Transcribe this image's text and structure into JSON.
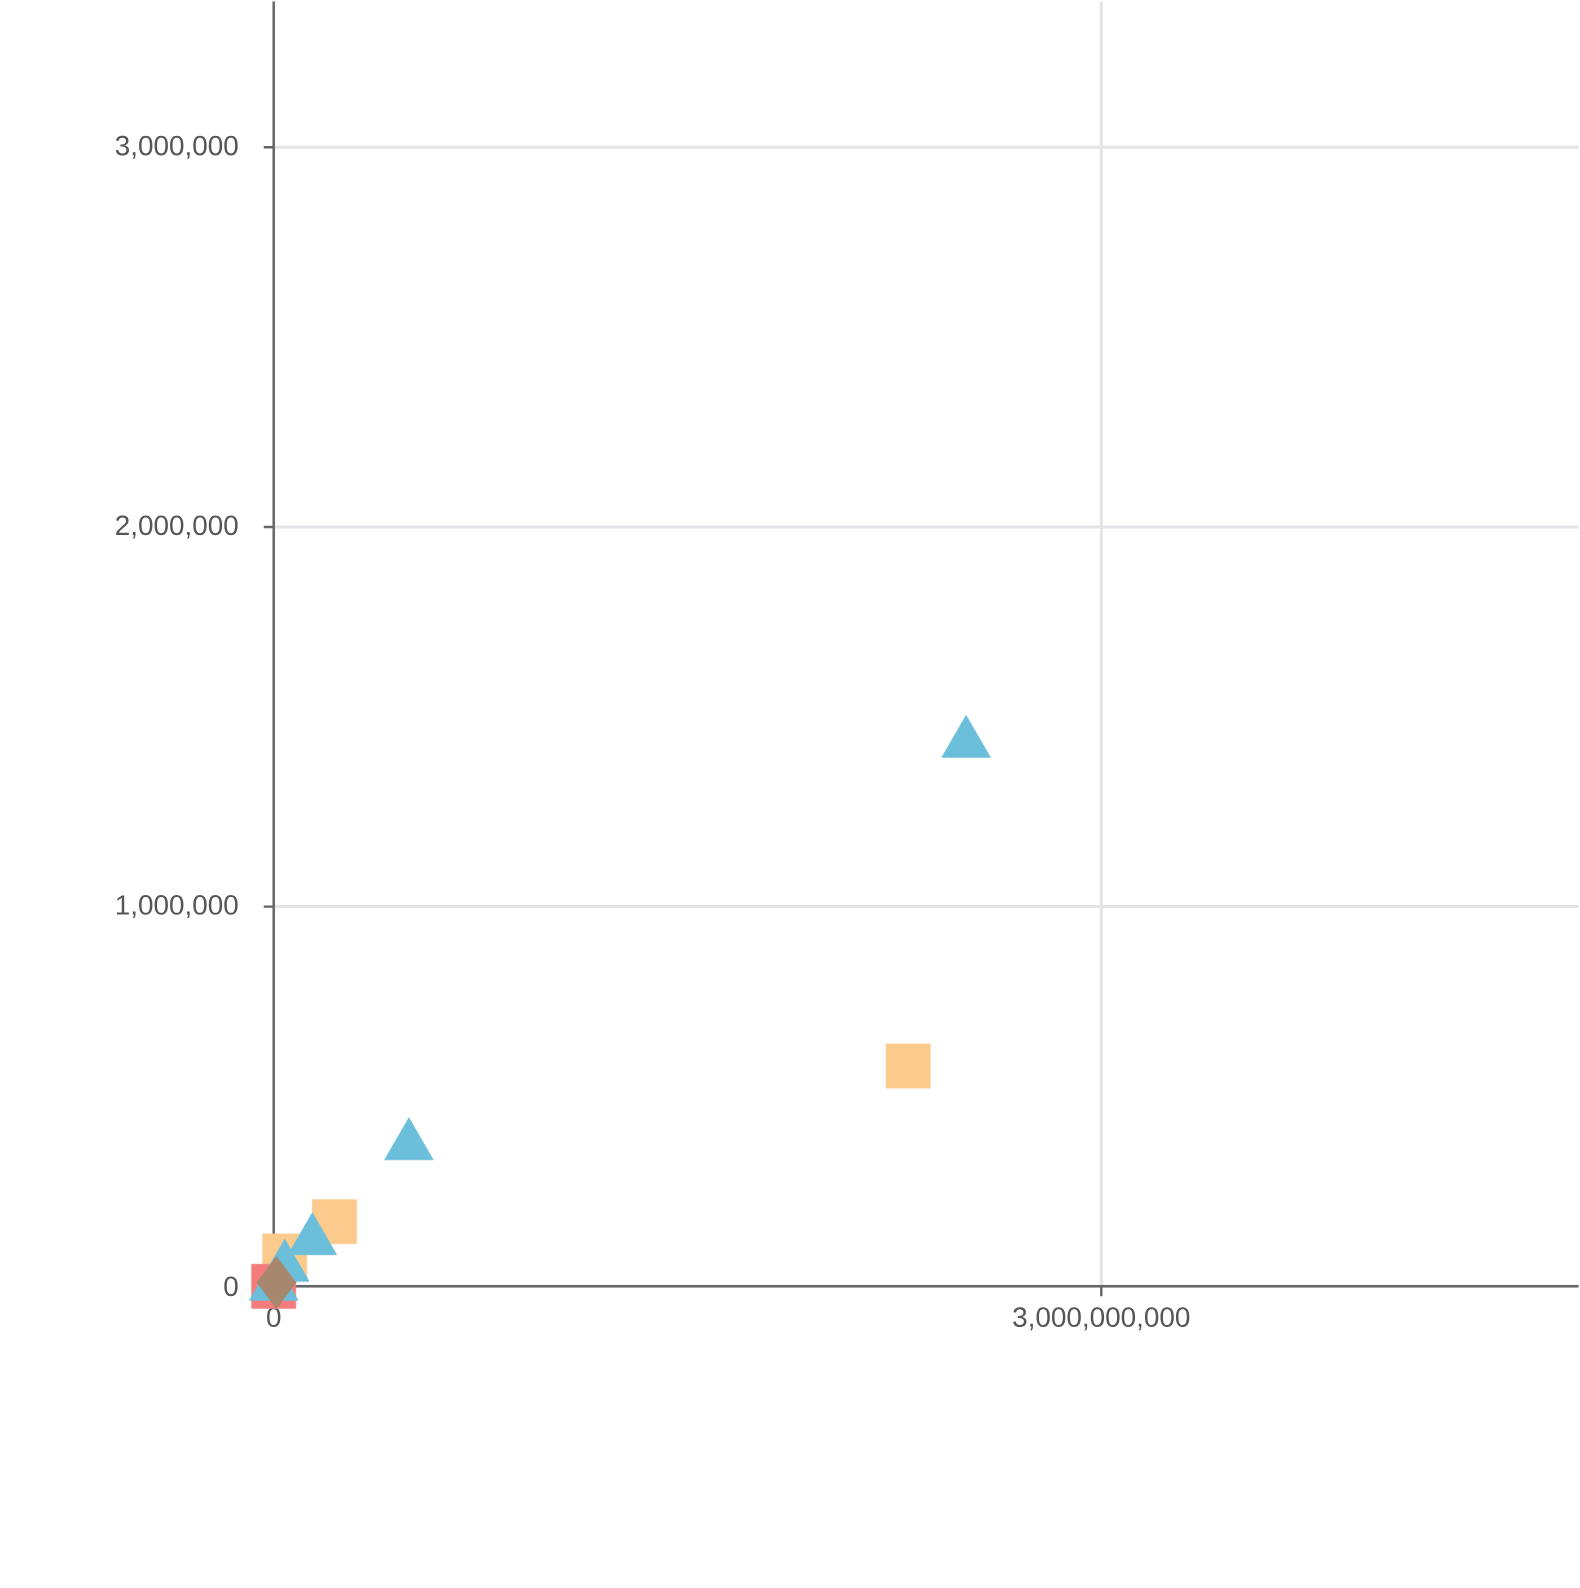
{
  "chart_data": {
    "type": "scatter",
    "xlim": [
      0,
      4730000000
    ],
    "ylim": [
      0,
      3384000
    ],
    "xticks": [
      {
        "value": 0,
        "label": "0"
      },
      {
        "value": 3000000000,
        "label": "3,000,000,000"
      }
    ],
    "yticks": [
      {
        "value": 0,
        "label": "0"
      },
      {
        "value": 1000000,
        "label": "1,000,000"
      },
      {
        "value": 2000000,
        "label": "2,000,000"
      },
      {
        "value": 3000000,
        "label": "3,000,000"
      }
    ],
    "grid": true,
    "series": [
      {
        "color": "#fdca8d",
        "marker": "square",
        "x": [
          2300000000,
          220000000,
          40000000
        ],
        "values": [
          580000,
          170000,
          80000
        ]
      },
      {
        "color": "#f47c7c",
        "marker": "square",
        "x": [
          0
        ],
        "values": [
          0
        ]
      },
      {
        "color": "#6bbfdb",
        "marker": "triangle",
        "x": [
          2510000000,
          490000000,
          140000000,
          40000000,
          0
        ],
        "values": [
          1430000,
          370000,
          120000,
          50000,
          0
        ]
      },
      {
        "color": "#a8876f",
        "marker": "diamond",
        "x": [
          10000000
        ],
        "values": [
          10000
        ]
      }
    ]
  }
}
